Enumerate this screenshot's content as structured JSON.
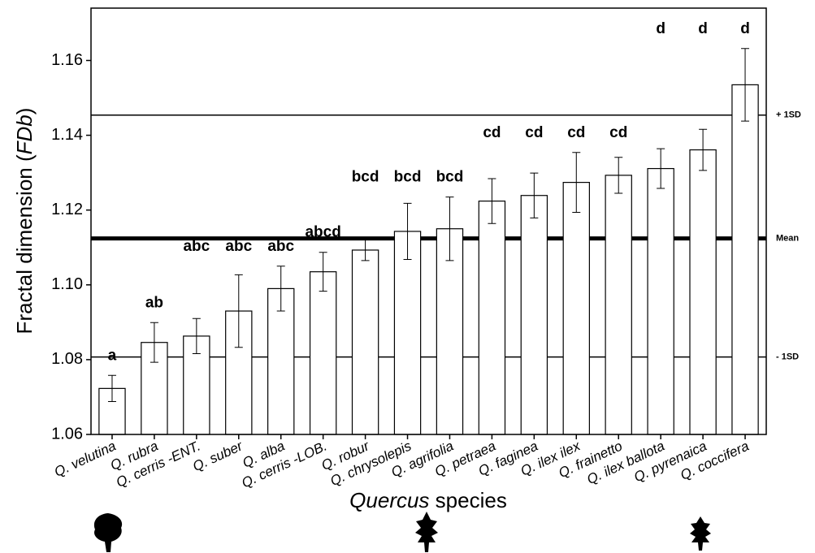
{
  "chart_data": {
    "type": "bar",
    "ylabel": [
      "Fractal dimension (",
      "FDb",
      ")"
    ],
    "xlabel": [
      "Quercus",
      "species"
    ],
    "categories": [
      "Q. velutina",
      "Q. rubra",
      "Q. cerris -ENT.",
      "Q. suber",
      "Q. alba",
      "Q. cerris -LOB.",
      "Q. robur",
      "Q. chrysolepis",
      "Q. agrifolia",
      "Q. petraea",
      "Q. faginea",
      "Q. ilex ilex",
      "Q. frainetto",
      "Q. ilex ballota",
      "Q. pyrenaica",
      "Q. coccifera"
    ],
    "values": [
      1.0723,
      1.0846,
      1.0863,
      1.093,
      1.099,
      1.1035,
      1.1093,
      1.1143,
      1.115,
      1.1224,
      1.1239,
      1.1274,
      1.1293,
      1.1311,
      1.1361,
      1.1535
    ],
    "errors": [
      0.0035,
      0.0053,
      0.0047,
      0.0097,
      0.006,
      0.0052,
      0.0028,
      0.0075,
      0.0085,
      0.006,
      0.006,
      0.008,
      0.0048,
      0.0053,
      0.0055,
      0.0097
    ],
    "group_letters": [
      "a",
      "ab",
      "abc",
      "abc",
      "abc",
      "abcd",
      "bcd",
      "bcd",
      "bcd",
      "cd",
      "cd",
      "cd",
      "cd",
      "d",
      "d",
      "d"
    ],
    "reference_lines": [
      {
        "label": "+ 1SD",
        "value": 1.1454
      },
      {
        "label": "Mean",
        "value": 1.1124
      },
      {
        "label": "- 1SD",
        "value": 1.0807
      }
    ],
    "color": "#ffffff",
    "ylim": [
      1.06,
      1.174
    ],
    "yticks": [
      1.06,
      1.08,
      {
        "value": 1.1,
        "label": "1.10"
      },
      1.12,
      1.14,
      1.16
    ]
  }
}
